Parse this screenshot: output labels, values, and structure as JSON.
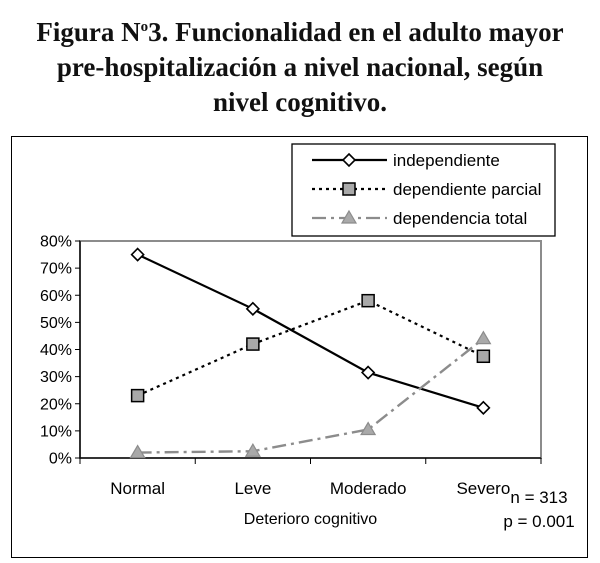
{
  "title": {
    "line1_prefix": "Figura N",
    "line1_sup": "o",
    "line1_rest": "3. Funcionalidad en el adulto mayor",
    "line2": "pre-hospitalización a nivel nacional, según",
    "line3": "nivel cognitivo."
  },
  "chart_data": {
    "type": "line",
    "title": "Figura Nº3. Funcionalidad en el adulto mayor pre-hospitalización a nivel nacional, según nivel cognitivo.",
    "xlabel": "Deterioro cognitivo",
    "ylabel": "",
    "categories": [
      "Normal",
      "Leve",
      "Moderado",
      "Severo"
    ],
    "ylim": [
      0,
      80
    ],
    "yticks": [
      "0%",
      "10%",
      "20%",
      "30%",
      "40%",
      "50%",
      "60%",
      "70%",
      "80%"
    ],
    "grid": false,
    "legend_position": "top-right",
    "series": [
      {
        "name": "independiente",
        "values": [
          75,
          55,
          31.5,
          18.5
        ],
        "marker": "diamond",
        "line": "solid",
        "color": "#000000"
      },
      {
        "name": "dependiente parcial",
        "values": [
          23,
          42,
          58,
          37.5
        ],
        "marker": "square",
        "line": "dotted",
        "color": "#000000"
      },
      {
        "name": "dependencia total",
        "values": [
          2,
          2.5,
          10.5,
          44
        ],
        "marker": "triangle",
        "line": "dashdot",
        "color": "#8c8c8c"
      }
    ],
    "annotations": [
      "n = 313",
      "p = 0.001"
    ]
  }
}
